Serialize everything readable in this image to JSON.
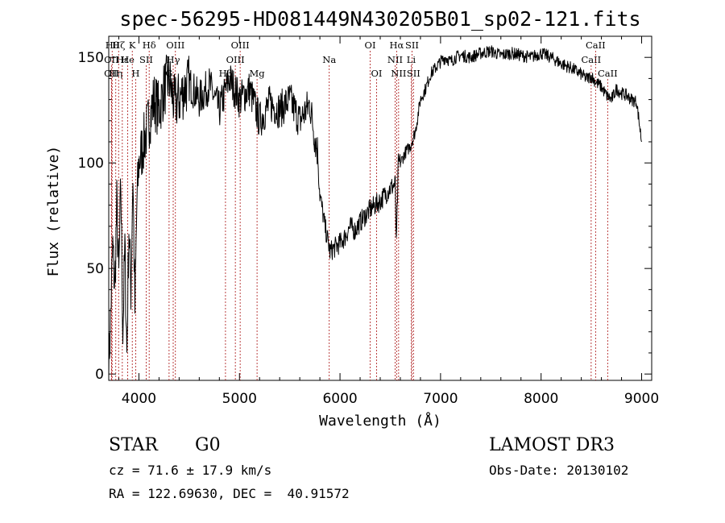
{
  "chart_data": {
    "type": "line",
    "title": "spec-56295-HD081449N430205B01_sp02-121.fits",
    "xlabel": "Wavelength (Å)",
    "ylabel": "Flux (relative)",
    "xlim": [
      3700,
      9100
    ],
    "ylim": [
      -3,
      160
    ],
    "xticks": [
      4000,
      5000,
      6000,
      7000,
      8000,
      9000
    ],
    "yticks": [
      0,
      50,
      100,
      150
    ],
    "line_color": "#000000",
    "marker_color": "#aa1111",
    "series": [
      {
        "x": [
          3700,
          3720,
          3740,
          3760,
          3780,
          3800,
          3820,
          3840,
          3860,
          3880,
          3900,
          3920,
          3940,
          3960,
          3980,
          4000,
          4050,
          4100,
          4150,
          4200,
          4250,
          4300,
          4350,
          4400,
          4450,
          4500,
          4600,
          4700,
          4800,
          4900,
          5000,
          5100,
          5200,
          5300,
          5400,
          5500,
          5600,
          5700,
          5750,
          5780,
          5800,
          5850,
          5900,
          5950,
          6000,
          6050,
          6100,
          6150,
          6200,
          6250,
          6300,
          6350,
          6400,
          6450,
          6500,
          6550,
          6560,
          6580,
          6600,
          6650,
          6700,
          6750,
          6800,
          6850,
          6900,
          6950,
          7000,
          7050,
          7100,
          7150,
          7200,
          7300,
          7400,
          7500,
          7600,
          7700,
          7800,
          7900,
          8000,
          8100,
          8200,
          8300,
          8400,
          8450,
          8500,
          8550,
          8600,
          8650,
          8700,
          8750,
          8800,
          8850,
          8900,
          8950,
          9000
        ],
        "y": [
          2,
          30,
          60,
          40,
          80,
          45,
          90,
          20,
          60,
          10,
          70,
          40,
          95,
          30,
          80,
          100,
          110,
          120,
          130,
          125,
          135,
          140,
          128,
          130,
          135,
          138,
          130,
          137,
          125,
          140,
          130,
          135,
          120,
          128,
          125,
          130,
          120,
          128,
          112,
          105,
          85,
          70,
          58,
          60,
          62,
          65,
          70,
          68,
          72,
          75,
          78,
          80,
          82,
          85,
          88,
          90,
          60,
          100,
          100,
          105,
          108,
          115,
          130,
          135,
          142,
          145,
          148,
          150,
          148,
          150,
          151,
          150,
          152,
          153,
          151,
          152,
          151,
          150,
          152,
          150,
          147,
          145,
          142,
          140,
          141,
          138,
          136,
          132,
          130,
          135,
          133,
          132,
          130,
          129,
          110
        ]
      }
    ],
    "lines": [
      {
        "wl": 3734,
        "label": "Hθ",
        "row": 0
      },
      {
        "wl": 3727,
        "label": "OII",
        "row": 1
      },
      {
        "wl": 3727,
        "label": "OII",
        "row": 2
      },
      {
        "wl": 3770,
        "label": "Hη",
        "row": 2
      },
      {
        "wl": 3798,
        "label": "Hζ",
        "row": 0
      },
      {
        "wl": 3835,
        "label": "Hε",
        "row": 1
      },
      {
        "wl": 3889,
        "label": "He",
        "row": 1
      },
      {
        "wl": 3934,
        "label": "K",
        "row": 0
      },
      {
        "wl": 3968,
        "label": "H",
        "row": 2
      },
      {
        "wl": 4072,
        "label": "SII",
        "row": 1
      },
      {
        "wl": 4102,
        "label": "Hδ",
        "row": 0
      },
      {
        "wl": 4300,
        "label": "G",
        "row": 2
      },
      {
        "wl": 4341,
        "label": "Hγ",
        "row": 1
      },
      {
        "wl": 4363,
        "label": "OIII",
        "row": 0
      },
      {
        "wl": 4861,
        "label": "Hβ",
        "row": 2
      },
      {
        "wl": 4959,
        "label": "OIII",
        "row": 1
      },
      {
        "wl": 5007,
        "label": "OIII",
        "row": 0
      },
      {
        "wl": 5175,
        "label": "Mg",
        "row": 2
      },
      {
        "wl": 5893,
        "label": "Na",
        "row": 1
      },
      {
        "wl": 6300,
        "label": "OI",
        "row": 0
      },
      {
        "wl": 6364,
        "label": "OI",
        "row": 2
      },
      {
        "wl": 6548,
        "label": "NII",
        "row": 1
      },
      {
        "wl": 6563,
        "label": "Hα",
        "row": 0
      },
      {
        "wl": 6583,
        "label": "NII",
        "row": 2
      },
      {
        "wl": 6708,
        "label": "Li",
        "row": 1
      },
      {
        "wl": 6716,
        "label": "SII",
        "row": 0
      },
      {
        "wl": 6731,
        "label": "SII",
        "row": 2
      },
      {
        "wl": 8498,
        "label": "CaII",
        "row": 1
      },
      {
        "wl": 8542,
        "label": "CaII",
        "row": 0
      },
      {
        "wl": 8662,
        "label": "CaII",
        "row": 2
      }
    ]
  },
  "info": {
    "object_type": "STAR",
    "subclass": "G0",
    "survey": "LAMOST DR3",
    "velocity": "cz = 71.6 ± 17.9 km/s",
    "obs_date": "Obs-Date: 20130102",
    "coords": "RA = 122.69630, DEC =  40.91572"
  }
}
